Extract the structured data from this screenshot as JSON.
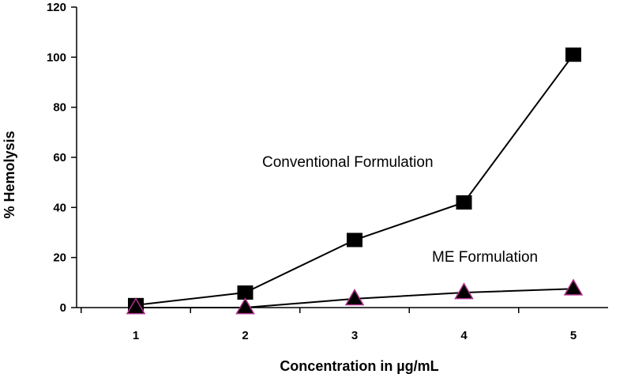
{
  "chart_data": {
    "type": "line",
    "title": "",
    "xlabel": "Concentration in µg/mL",
    "ylabel": "% Hemolysis",
    "categories": [
      "1",
      "2",
      "3",
      "4",
      "5"
    ],
    "ylim": [
      0,
      120
    ],
    "yticks": [
      "0",
      "20",
      "40",
      "60",
      "80",
      "100",
      "120"
    ],
    "grid": false,
    "series": [
      {
        "name": "Conventional Formulation",
        "marker": "square",
        "color": "#000000",
        "values": [
          1,
          6,
          27,
          42,
          101
        ]
      },
      {
        "name": "ME Formulation",
        "marker": "triangle",
        "color": "#000000",
        "marker_outline": "#b0308a",
        "values": [
          0,
          0,
          3.5,
          6,
          7.5
        ]
      }
    ]
  }
}
